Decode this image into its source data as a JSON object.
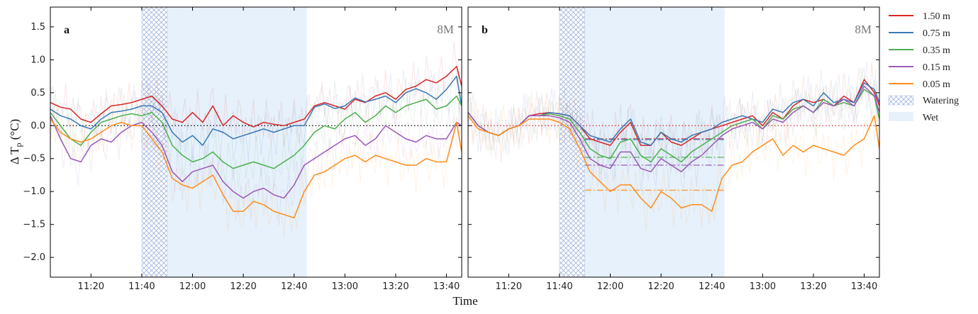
{
  "x_label": "Time",
  "y_label_prefix": "Δ T",
  "y_label_sub": "p",
  "y_label_unit": " (°C)",
  "legend": {
    "entries": [
      "1.50 m",
      "0.75 m",
      "0.35 m",
      "0.15 m",
      "0.05 m",
      "Watering",
      "Wet"
    ],
    "placement": "right-outside"
  },
  "colors": {
    "1.50 m": "#d62728",
    "0.75 m": "#3a78b5",
    "0.35 m": "#4caf50",
    "0.15 m": "#9b59b6",
    "0.05 m": "#ff8c1a",
    "watering": "#aab8dc",
    "wet": "#e6f1fb"
  },
  "chart_data": [
    {
      "type": "line",
      "panel_label": "a",
      "site_label": "8M",
      "x_ticks": [
        "11:20",
        "11:40",
        "12:00",
        "12:20",
        "12:40",
        "13:00",
        "13:20",
        "13:40"
      ],
      "x_tick_minutes": [
        680,
        700,
        720,
        740,
        760,
        780,
        800,
        820
      ],
      "x_range_minutes": [
        664,
        826
      ],
      "y_ticks": [
        "1.5",
        "1.0",
        "0.5",
        "0.0",
        "−0.5",
        "−1.0",
        "−1.5",
        "−2.0"
      ],
      "y_tick_values": [
        1.5,
        1.0,
        0.5,
        0.0,
        -0.5,
        -1.0,
        -1.5,
        -2.0
      ],
      "ylim": [
        -2.3,
        1.8
      ],
      "zero_line": "black dotted",
      "watering_window_minutes": [
        700,
        710
      ],
      "wet_window_minutes": [
        710,
        765
      ],
      "mean_levels": [],
      "series": [
        {
          "name": "1.50 m",
          "x": [
            664,
            668,
            672,
            676,
            680,
            684,
            688,
            692,
            696,
            700,
            704,
            708,
            712,
            716,
            720,
            724,
            728,
            732,
            736,
            740,
            744,
            748,
            752,
            756,
            760,
            764,
            768,
            772,
            776,
            780,
            784,
            788,
            792,
            796,
            800,
            804,
            808,
            812,
            816,
            820,
            824,
            826
          ],
          "y": [
            0.35,
            0.28,
            0.25,
            0.1,
            0.05,
            0.18,
            0.3,
            0.32,
            0.35,
            0.4,
            0.45,
            0.3,
            0.1,
            0.05,
            0.2,
            0.05,
            0.3,
            0.0,
            0.15,
            0.05,
            -0.02,
            0.05,
            0.02,
            0.0,
            0.05,
            0.1,
            0.3,
            0.35,
            0.3,
            0.25,
            0.4,
            0.35,
            0.45,
            0.5,
            0.4,
            0.55,
            0.6,
            0.7,
            0.65,
            0.75,
            0.9,
            0.6
          ]
        },
        {
          "name": "0.75 m",
          "x": [
            664,
            668,
            672,
            676,
            680,
            684,
            688,
            692,
            696,
            700,
            704,
            708,
            712,
            716,
            720,
            724,
            728,
            732,
            736,
            740,
            744,
            748,
            752,
            756,
            760,
            764,
            768,
            772,
            776,
            780,
            784,
            788,
            792,
            796,
            800,
            804,
            808,
            812,
            816,
            820,
            824,
            826
          ],
          "y": [
            0.25,
            0.15,
            0.1,
            0.0,
            -0.05,
            0.1,
            0.2,
            0.22,
            0.25,
            0.3,
            0.3,
            0.2,
            -0.1,
            -0.25,
            -0.15,
            -0.3,
            -0.05,
            -0.1,
            -0.2,
            -0.15,
            -0.1,
            -0.05,
            -0.1,
            -0.05,
            0.0,
            0.0,
            0.28,
            0.33,
            0.26,
            0.3,
            0.42,
            0.36,
            0.4,
            0.45,
            0.35,
            0.5,
            0.56,
            0.5,
            0.4,
            0.55,
            0.75,
            0.3
          ]
        },
        {
          "name": "0.35 m",
          "x": [
            664,
            668,
            672,
            676,
            680,
            684,
            688,
            692,
            696,
            700,
            704,
            708,
            712,
            716,
            720,
            724,
            728,
            732,
            736,
            740,
            744,
            748,
            752,
            756,
            760,
            764,
            768,
            772,
            776,
            780,
            784,
            788,
            792,
            796,
            800,
            804,
            808,
            812,
            816,
            820,
            824,
            826
          ],
          "y": [
            0.2,
            0.0,
            -0.2,
            -0.3,
            -0.1,
            0.05,
            0.1,
            0.15,
            0.18,
            0.15,
            0.2,
            0.05,
            -0.3,
            -0.45,
            -0.55,
            -0.5,
            -0.4,
            -0.55,
            -0.65,
            -0.6,
            -0.55,
            -0.6,
            -0.65,
            -0.55,
            -0.45,
            -0.3,
            -0.1,
            0.0,
            -0.05,
            0.1,
            0.2,
            0.05,
            0.15,
            0.3,
            0.2,
            0.3,
            0.35,
            0.4,
            0.25,
            0.3,
            0.45,
            0.3
          ]
        },
        {
          "name": "0.15 m",
          "x": [
            664,
            668,
            672,
            676,
            680,
            684,
            688,
            692,
            696,
            700,
            704,
            708,
            712,
            716,
            720,
            724,
            728,
            732,
            736,
            740,
            744,
            748,
            752,
            756,
            760,
            764,
            768,
            772,
            776,
            780,
            784,
            788,
            792,
            796,
            800,
            804,
            808,
            812,
            816,
            820,
            824,
            826
          ],
          "y": [
            0.15,
            -0.2,
            -0.5,
            -0.55,
            -0.3,
            -0.2,
            -0.25,
            -0.1,
            0.0,
            0.05,
            -0.1,
            -0.3,
            -0.7,
            -0.85,
            -0.7,
            -0.65,
            -0.6,
            -0.85,
            -1.0,
            -1.1,
            -1.0,
            -0.95,
            -1.05,
            -1.1,
            -0.9,
            -0.6,
            -0.5,
            -0.4,
            -0.3,
            -0.2,
            -0.15,
            -0.3,
            -0.2,
            0.0,
            -0.1,
            -0.2,
            -0.25,
            -0.15,
            -0.2,
            -0.2,
            0.05,
            0.0
          ]
        },
        {
          "name": "0.05 m",
          "x": [
            664,
            668,
            672,
            676,
            680,
            684,
            688,
            692,
            696,
            700,
            704,
            708,
            712,
            716,
            720,
            724,
            728,
            732,
            736,
            740,
            744,
            748,
            752,
            756,
            760,
            764,
            768,
            772,
            776,
            780,
            784,
            788,
            792,
            796,
            800,
            804,
            808,
            812,
            816,
            820,
            824,
            826
          ],
          "y": [
            0.1,
            -0.1,
            -0.2,
            -0.25,
            -0.2,
            -0.1,
            0.0,
            0.05,
            0.0,
            0.0,
            -0.2,
            -0.4,
            -0.8,
            -0.9,
            -0.95,
            -0.85,
            -0.75,
            -1.05,
            -1.3,
            -1.3,
            -1.15,
            -1.2,
            -1.3,
            -1.35,
            -1.4,
            -1.0,
            -0.75,
            -0.7,
            -0.6,
            -0.5,
            -0.45,
            -0.55,
            -0.45,
            -0.5,
            -0.55,
            -0.6,
            -0.6,
            -0.5,
            -0.55,
            -0.55,
            0.05,
            -0.4
          ]
        }
      ]
    },
    {
      "type": "line",
      "panel_label": "b",
      "site_label": "8M",
      "x_ticks": [
        "11:20",
        "11:40",
        "12:00",
        "12:20",
        "12:40",
        "13:00",
        "13:20",
        "13:40"
      ],
      "x_tick_minutes": [
        680,
        700,
        720,
        740,
        760,
        780,
        800,
        820
      ],
      "x_range_minutes": [
        664,
        826
      ],
      "y_ticks": [
        "1.5",
        "1.0",
        "0.5",
        "0.0",
        "−0.5",
        "−1.0",
        "−1.5",
        "−2.0"
      ],
      "y_tick_values": [
        1.5,
        1.0,
        0.5,
        0.0,
        -0.5,
        -1.0,
        -1.5,
        -2.0
      ],
      "ylim": [
        -2.3,
        1.8
      ],
      "zero_line": "red dotted",
      "watering_window_minutes": [
        700,
        710
      ],
      "wet_window_minutes": [
        710,
        765
      ],
      "mean_levels": [
        {
          "name": "1.50 m",
          "value": -0.2
        },
        {
          "name": "0.75 m",
          "value": -0.21
        },
        {
          "name": "0.35 m",
          "value": -0.48
        },
        {
          "name": "0.15 m",
          "value": -0.6
        },
        {
          "name": "0.05 m",
          "value": -0.98
        }
      ],
      "series": [
        {
          "name": "1.50 m",
          "x": [
            664,
            668,
            672,
            676,
            680,
            684,
            688,
            692,
            696,
            700,
            704,
            708,
            712,
            716,
            720,
            724,
            728,
            732,
            736,
            740,
            744,
            748,
            752,
            756,
            760,
            764,
            768,
            772,
            776,
            780,
            784,
            788,
            792,
            796,
            800,
            804,
            808,
            812,
            816,
            820,
            824,
            826
          ],
          "y": [
            0.2,
            0.0,
            -0.1,
            -0.15,
            -0.05,
            0.0,
            0.15,
            0.18,
            0.2,
            0.18,
            0.15,
            0.0,
            -0.2,
            -0.25,
            -0.3,
            -0.1,
            0.05,
            -0.3,
            -0.3,
            -0.1,
            -0.25,
            -0.3,
            -0.2,
            -0.1,
            -0.05,
            0.0,
            0.05,
            0.1,
            0.15,
            0.0,
            0.2,
            0.1,
            0.3,
            0.4,
            0.35,
            0.4,
            0.3,
            0.45,
            0.35,
            0.7,
            0.5,
            0.3
          ]
        },
        {
          "name": "0.75 m",
          "x": [
            664,
            668,
            672,
            676,
            680,
            684,
            688,
            692,
            696,
            700,
            704,
            708,
            712,
            716,
            720,
            724,
            728,
            732,
            736,
            740,
            744,
            748,
            752,
            756,
            760,
            764,
            768,
            772,
            776,
            780,
            784,
            788,
            792,
            796,
            800,
            804,
            808,
            812,
            816,
            820,
            824,
            826
          ],
          "y": [
            0.2,
            0.0,
            -0.1,
            -0.15,
            -0.05,
            0.0,
            0.15,
            0.15,
            0.2,
            0.18,
            0.15,
            0.0,
            -0.15,
            -0.2,
            -0.25,
            -0.05,
            0.1,
            -0.25,
            -0.3,
            -0.1,
            -0.2,
            -0.25,
            -0.15,
            -0.1,
            -0.05,
            0.05,
            0.1,
            0.15,
            0.1,
            0.05,
            0.25,
            0.2,
            0.35,
            0.4,
            0.3,
            0.5,
            0.35,
            0.4,
            0.35,
            0.65,
            0.55,
            0.35
          ]
        },
        {
          "name": "0.35 m",
          "x": [
            664,
            668,
            672,
            676,
            680,
            684,
            688,
            692,
            696,
            700,
            704,
            708,
            712,
            716,
            720,
            724,
            728,
            732,
            736,
            740,
            744,
            748,
            752,
            756,
            760,
            764,
            768,
            772,
            776,
            780,
            784,
            788,
            792,
            796,
            800,
            804,
            808,
            812,
            816,
            820,
            824,
            826
          ],
          "y": [
            0.2,
            0.0,
            -0.1,
            -0.15,
            -0.05,
            0.0,
            0.15,
            0.15,
            0.18,
            0.15,
            0.1,
            -0.1,
            -0.35,
            -0.45,
            -0.5,
            -0.25,
            -0.2,
            -0.45,
            -0.55,
            -0.35,
            -0.45,
            -0.55,
            -0.4,
            -0.3,
            -0.2,
            -0.1,
            0.0,
            0.05,
            0.1,
            -0.05,
            0.15,
            0.1,
            0.25,
            0.3,
            0.2,
            0.4,
            0.3,
            0.35,
            0.3,
            0.55,
            0.45,
            0.1
          ]
        },
        {
          "name": "0.15 m",
          "x": [
            664,
            668,
            672,
            676,
            680,
            684,
            688,
            692,
            696,
            700,
            704,
            708,
            712,
            716,
            720,
            724,
            728,
            732,
            736,
            740,
            744,
            748,
            752,
            756,
            760,
            764,
            768,
            772,
            776,
            780,
            784,
            788,
            792,
            796,
            800,
            804,
            808,
            812,
            816,
            820,
            824,
            826
          ],
          "y": [
            0.2,
            0.0,
            -0.1,
            -0.15,
            -0.05,
            0.0,
            0.15,
            0.15,
            0.15,
            0.12,
            0.05,
            -0.2,
            -0.5,
            -0.6,
            -0.65,
            -0.4,
            -0.4,
            -0.65,
            -0.7,
            -0.5,
            -0.6,
            -0.7,
            -0.55,
            -0.45,
            -0.3,
            -0.15,
            -0.05,
            0.0,
            0.05,
            -0.05,
            0.1,
            0.05,
            0.2,
            0.3,
            0.2,
            0.35,
            0.3,
            0.4,
            0.3,
            0.6,
            0.45,
            0.2
          ]
        },
        {
          "name": "0.05 m",
          "x": [
            664,
            668,
            672,
            676,
            680,
            684,
            688,
            692,
            696,
            700,
            704,
            708,
            712,
            716,
            720,
            724,
            728,
            732,
            736,
            740,
            744,
            748,
            752,
            756,
            760,
            764,
            768,
            772,
            776,
            780,
            784,
            788,
            792,
            796,
            800,
            804,
            808,
            812,
            816,
            820,
            824,
            826
          ],
          "y": [
            0.15,
            -0.05,
            -0.1,
            -0.15,
            -0.05,
            0.0,
            0.1,
            0.1,
            0.1,
            0.05,
            -0.05,
            -0.35,
            -0.7,
            -0.85,
            -1.0,
            -0.9,
            -0.9,
            -1.1,
            -1.25,
            -1.0,
            -1.1,
            -1.25,
            -1.2,
            -1.2,
            -1.3,
            -0.8,
            -0.6,
            -0.55,
            -0.4,
            -0.3,
            -0.2,
            -0.45,
            -0.3,
            -0.4,
            -0.3,
            -0.35,
            -0.4,
            -0.45,
            -0.3,
            -0.2,
            0.15,
            -0.35
          ]
        }
      ]
    }
  ]
}
